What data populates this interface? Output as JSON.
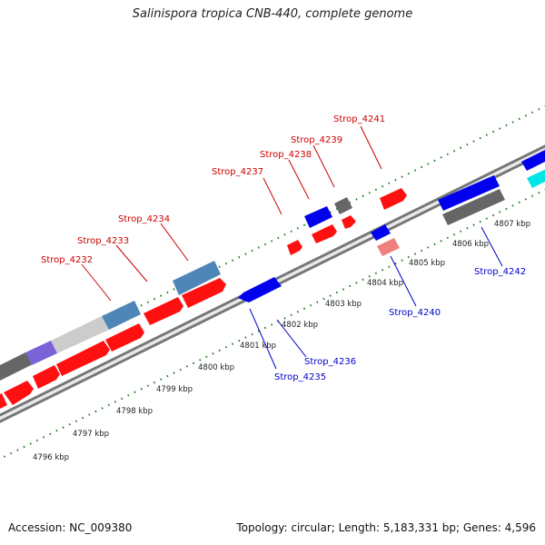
{
  "title": "Salinispora tropica CNB-440, complete genome",
  "footer": {
    "accession": "Accession: NC_009380",
    "topology": "Topology: circular; Length: 5,183,331 bp; Genes: 4,596"
  },
  "colors": {
    "forward_label": "#cc0000",
    "reverse_label": "#0000cc",
    "cds_forward": "#ff0000",
    "cds_reverse": "#0000ee",
    "gene_gray": "#666666",
    "gene_steelblue": "#4f86b8",
    "gene_cyan": "#00e5e5",
    "gene_purple": "#7b62d6",
    "gene_pink": "#f08080",
    "backbone": "#888888",
    "tick_dots": "#1a7a1a"
  },
  "scale_ticks": [
    "4796 kbp",
    "4797 kbp",
    "4798 kbp",
    "4799 kbp",
    "4800 kbp",
    "4801 kbp",
    "4802 kbp",
    "4803 kbp",
    "4804 kbp",
    "4805 kbp",
    "4806 kbp",
    "4807 kbp"
  ],
  "forward_labels": [
    "Strop_4232",
    "Strop_4233",
    "Strop_4234",
    "Strop_4237",
    "Strop_4238",
    "Strop_4239",
    "Strop_4241"
  ],
  "reverse_labels": [
    "Strop_4235",
    "Strop_4236",
    "Strop_4240",
    "Strop_4242"
  ]
}
